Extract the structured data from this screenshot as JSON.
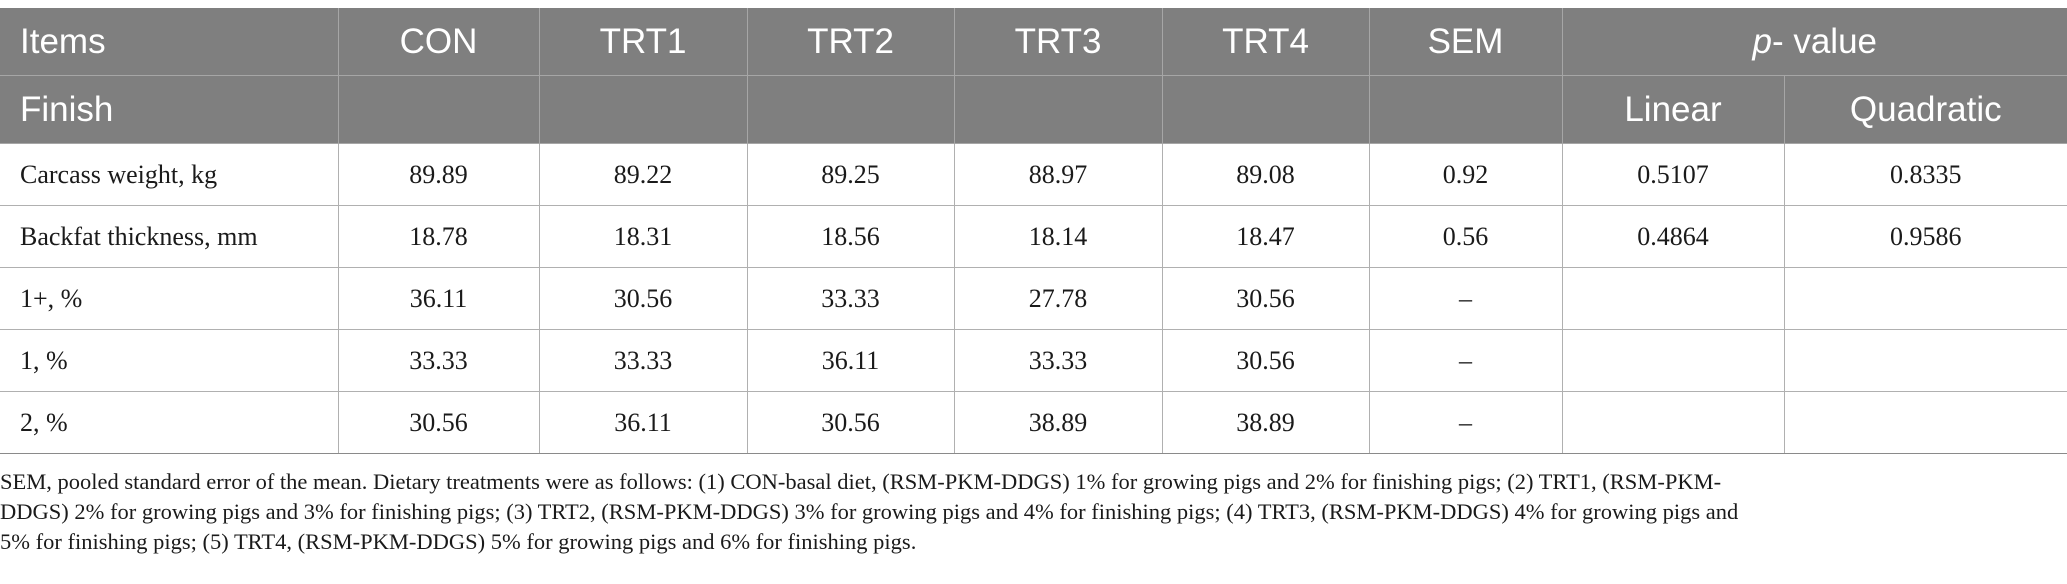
{
  "table": {
    "header_row1": {
      "items": "Items",
      "groups": [
        "CON",
        "TRT1",
        "TRT2",
        "TRT3",
        "TRT4"
      ],
      "sem": "SEM",
      "p_italic": "p",
      "p_rest": "- value"
    },
    "header_row2": {
      "section": "Finish",
      "linear": "Linear",
      "quadratic": "Quadratic"
    },
    "rows": [
      {
        "label": "Carcass weight, kg",
        "values": [
          "89.89",
          "89.22",
          "89.25",
          "88.97",
          "89.08"
        ],
        "sem": "0.92",
        "linear": "0.5107",
        "quadratic": "0.8335"
      },
      {
        "label": "Backfat thickness, mm",
        "values": [
          "18.78",
          "18.31",
          "18.56",
          "18.14",
          "18.47"
        ],
        "sem": "0.56",
        "linear": "0.4864",
        "quadratic": "0.9586"
      },
      {
        "label": "1+, %",
        "values": [
          "36.11",
          "30.56",
          "33.33",
          "27.78",
          "30.56"
        ],
        "sem": "–",
        "linear": "",
        "quadratic": ""
      },
      {
        "label": "1, %",
        "values": [
          "33.33",
          "33.33",
          "36.11",
          "33.33",
          "30.56"
        ],
        "sem": "–",
        "linear": "",
        "quadratic": ""
      },
      {
        "label": "2, %",
        "values": [
          "30.56",
          "36.11",
          "30.56",
          "38.89",
          "38.89"
        ],
        "sem": "–",
        "linear": "",
        "quadratic": ""
      }
    ]
  },
  "footnote": {
    "line1": "SEM, pooled standard error of the mean. Dietary treatments were as follows: (1) CON-basal diet, (RSM-PKM-DDGS) 1% for growing pigs and 2% for finishing pigs; (2) TRT1, (RSM-PKM-",
    "line2": "DDGS) 2% for growing pigs and 3% for finishing pigs; (3) TRT2, (RSM-PKM-DDGS) 3% for growing pigs and 4% for finishing pigs; (4) TRT3, (RSM-PKM-DDGS) 4% for growing pigs and",
    "line3": "5% for finishing pigs; (5) TRT4, (RSM-PKM-DDGS) 5% for growing pigs and 6% for finishing pigs."
  },
  "colors": {
    "header_bg": "#7f7f7f",
    "header_text": "#ffffff",
    "grid": "#b0b0b0"
  }
}
